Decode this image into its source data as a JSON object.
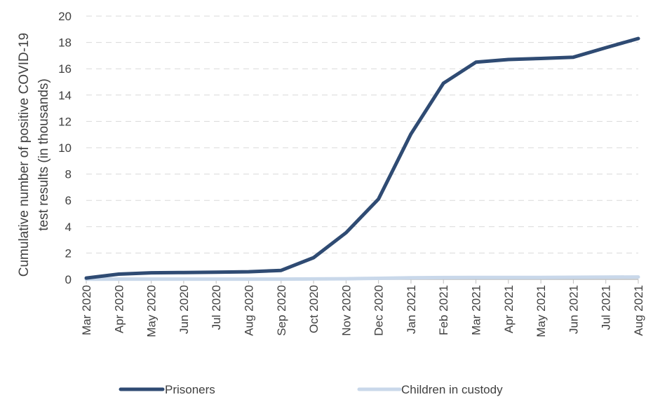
{
  "chart_data": {
    "type": "line",
    "ylabel": [
      "Cumulative number of positive  COVID-19",
      "test results (in thousands)"
    ],
    "xlabel": "",
    "ylim": [
      0,
      20
    ],
    "yticks": [
      0,
      2,
      4,
      6,
      8,
      10,
      12,
      14,
      16,
      18,
      20
    ],
    "grid": true,
    "legend_position": "bottom",
    "categories": [
      "Mar 2020",
      "Apr 2020",
      "May 2020",
      "Jun 2020",
      "Jul 2020",
      "Aug 2020",
      "Sep 2020",
      "Oct 2020",
      "Nov 2020",
      "Dec 2020",
      "Jan 2021",
      "Feb 2021",
      "Mar 2021",
      "Apr 2021",
      "May 2021",
      "Jun 2021",
      "Jul 2021",
      "Aug 2021"
    ],
    "series": [
      {
        "name": "Prisoners",
        "color": "#2f4b73",
        "values": [
          0.1,
          0.4,
          0.5,
          0.52,
          0.55,
          0.58,
          0.68,
          1.65,
          3.55,
          6.1,
          11.05,
          14.9,
          16.5,
          16.7,
          16.78,
          16.88,
          17.6,
          18.3
        ]
      },
      {
        "name": "Children in custody",
        "color": "#c9d8ea",
        "values": [
          0.01,
          0.02,
          0.02,
          0.02,
          0.02,
          0.02,
          0.02,
          0.03,
          0.05,
          0.08,
          0.12,
          0.14,
          0.15,
          0.15,
          0.15,
          0.16,
          0.17,
          0.18
        ]
      }
    ]
  },
  "colors": {
    "grid": "#d9d9d9",
    "axis": "#bfbfbf",
    "text": "#404040"
  }
}
